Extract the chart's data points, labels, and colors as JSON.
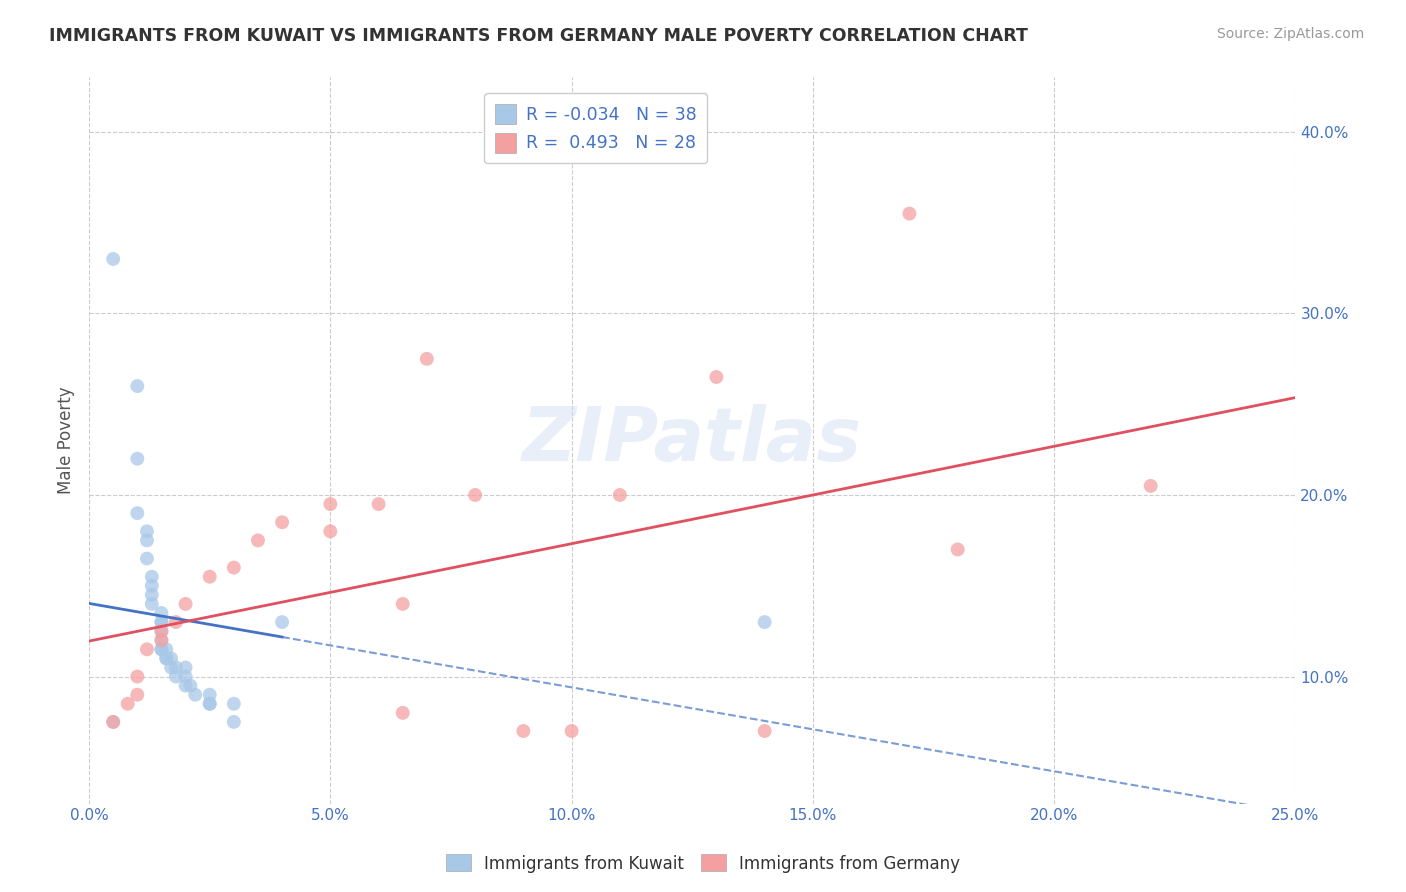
{
  "title": "IMMIGRANTS FROM KUWAIT VS IMMIGRANTS FROM GERMANY MALE POVERTY CORRELATION CHART",
  "source_text": "Source: ZipAtlas.com",
  "ylabel": "Male Poverty",
  "xlim": [
    0.0,
    0.25
  ],
  "ylim": [
    0.03,
    0.43
  ],
  "xtick_labels": [
    "0.0%",
    "5.0%",
    "10.0%",
    "15.0%",
    "20.0%",
    "25.0%"
  ],
  "xtick_vals": [
    0.0,
    0.05,
    0.1,
    0.15,
    0.2,
    0.25
  ],
  "ytick_labels": [
    "10.0%",
    "20.0%",
    "30.0%",
    "40.0%"
  ],
  "ytick_vals": [
    0.1,
    0.2,
    0.3,
    0.4
  ],
  "kuwait_color": "#a8c8e8",
  "germany_color": "#f4a0a0",
  "kuwait_line_color": "#4472c4",
  "germany_line_color": "#e05060",
  "watermark": "ZIPatlas",
  "legend_R_kuwait": "-0.034",
  "legend_N_kuwait": "38",
  "legend_R_germany": "0.493",
  "legend_N_germany": "28",
  "kuwait_scatter_x": [
    0.005,
    0.01,
    0.01,
    0.01,
    0.012,
    0.012,
    0.012,
    0.013,
    0.013,
    0.013,
    0.013,
    0.015,
    0.015,
    0.015,
    0.015,
    0.015,
    0.015,
    0.015,
    0.016,
    0.016,
    0.016,
    0.017,
    0.017,
    0.018,
    0.018,
    0.02,
    0.02,
    0.02,
    0.021,
    0.022,
    0.025,
    0.025,
    0.025,
    0.03,
    0.03,
    0.14,
    0.005,
    0.04
  ],
  "kuwait_scatter_y": [
    0.33,
    0.26,
    0.22,
    0.19,
    0.18,
    0.175,
    0.165,
    0.155,
    0.15,
    0.145,
    0.14,
    0.135,
    0.13,
    0.13,
    0.125,
    0.12,
    0.115,
    0.115,
    0.115,
    0.11,
    0.11,
    0.11,
    0.105,
    0.105,
    0.1,
    0.105,
    0.1,
    0.095,
    0.095,
    0.09,
    0.09,
    0.085,
    0.085,
    0.085,
    0.075,
    0.13,
    0.075,
    0.13
  ],
  "germany_scatter_x": [
    0.005,
    0.008,
    0.01,
    0.01,
    0.012,
    0.015,
    0.015,
    0.018,
    0.02,
    0.025,
    0.03,
    0.035,
    0.04,
    0.05,
    0.05,
    0.06,
    0.065,
    0.07,
    0.08,
    0.09,
    0.1,
    0.13,
    0.14,
    0.17,
    0.18,
    0.22,
    0.11,
    0.065
  ],
  "germany_scatter_y": [
    0.075,
    0.085,
    0.09,
    0.1,
    0.115,
    0.12,
    0.125,
    0.13,
    0.14,
    0.155,
    0.16,
    0.175,
    0.185,
    0.18,
    0.195,
    0.195,
    0.14,
    0.275,
    0.2,
    0.07,
    0.07,
    0.265,
    0.07,
    0.355,
    0.17,
    0.205,
    0.2,
    0.08
  ],
  "background_color": "#ffffff",
  "grid_color": "#cccccc",
  "title_color": "#333333",
  "axis_label_color": "#555555",
  "tick_label_color": "#4472c4"
}
